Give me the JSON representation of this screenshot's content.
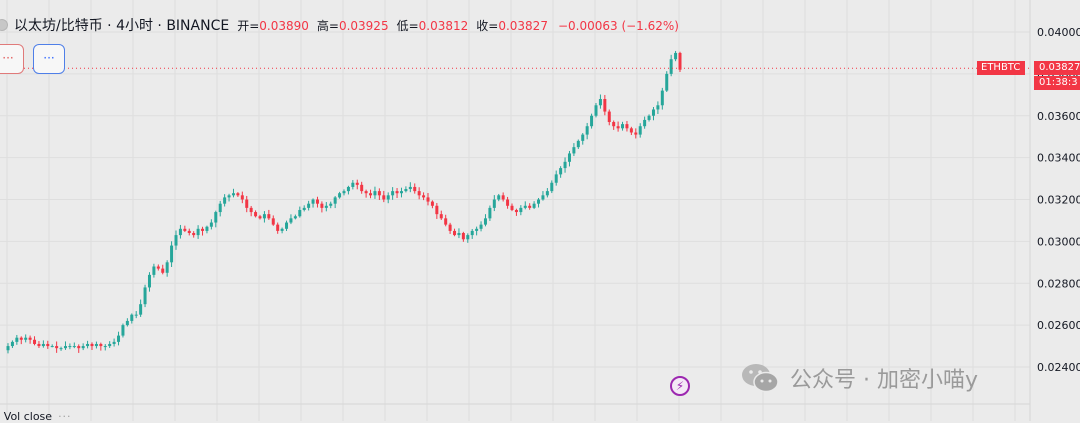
{
  "header": {
    "symbol_title": "以太坊/比特币 · 4小时 · BINANCE",
    "open_label": "开=",
    "open": "0.03890",
    "high_label": "高=",
    "high": "0.03925",
    "low_label": "低=",
    "low": "0.03812",
    "close_label": "收=",
    "close": "0.03827",
    "change": "−0.00063 (−1.62%)"
  },
  "buttons": {
    "sell_label": "···",
    "buy_label": "···"
  },
  "price_tags": {
    "symbol": "ETHBTC",
    "last_price": "0.03827",
    "countdown": "01:38:3"
  },
  "volume_legend": {
    "label": "H Vol close",
    "dots": "···"
  },
  "watermark": {
    "text": "公众号 · 加密小喵y"
  },
  "icons": {
    "flash": "lightning-icon",
    "wechat": "wechat-logo-icon"
  },
  "colors": {
    "up": "#26a69a",
    "down": "#f23645",
    "price_line": "#f23645",
    "background": "#ebebeb"
  },
  "chart_data": {
    "type": "candlestick",
    "title": "以太坊/比特币 · 4小时 · BINANCE",
    "ylim": [
      0.023,
      0.041
    ],
    "yticks": [
      "0.04000",
      "0.03800",
      "0.03600",
      "0.03400",
      "0.03200",
      "0.03000",
      "0.02800",
      "0.02600",
      "0.02400"
    ],
    "grid": true,
    "last_price": 0.03827,
    "close_series": [
      0.025,
      0.0252,
      0.0254,
      0.0253,
      0.0254,
      0.0253,
      0.0251,
      0.025,
      0.0251,
      0.025,
      0.025,
      0.0249,
      0.0249,
      0.025,
      0.025,
      0.025,
      0.0249,
      0.025,
      0.0251,
      0.025,
      0.0251,
      0.025,
      0.025,
      0.0251,
      0.0252,
      0.0255,
      0.026,
      0.0262,
      0.0265,
      0.0265,
      0.027,
      0.0278,
      0.0284,
      0.0288,
      0.0287,
      0.0285,
      0.029,
      0.0298,
      0.0303,
      0.0306,
      0.0305,
      0.0304,
      0.0303,
      0.0306,
      0.0305,
      0.0307,
      0.0309,
      0.0314,
      0.0318,
      0.0321,
      0.0322,
      0.0323,
      0.0322,
      0.032,
      0.0316,
      0.0314,
      0.0312,
      0.0311,
      0.0313,
      0.0311,
      0.0308,
      0.0305,
      0.0306,
      0.0309,
      0.0311,
      0.0312,
      0.0315,
      0.0316,
      0.0318,
      0.032,
      0.0318,
      0.0316,
      0.0317,
      0.0318,
      0.0321,
      0.0323,
      0.0324,
      0.0326,
      0.0328,
      0.0327,
      0.0324,
      0.0323,
      0.0322,
      0.0324,
      0.0322,
      0.032,
      0.0322,
      0.0324,
      0.0323,
      0.0324,
      0.0325,
      0.0326,
      0.0324,
      0.0322,
      0.0321,
      0.0319,
      0.0317,
      0.0313,
      0.0311,
      0.0308,
      0.0305,
      0.0303,
      0.0304,
      0.0301,
      0.0303,
      0.0305,
      0.0306,
      0.0308,
      0.0311,
      0.0316,
      0.032,
      0.0322,
      0.032,
      0.0317,
      0.0315,
      0.0314,
      0.0316,
      0.0317,
      0.0316,
      0.0318,
      0.032,
      0.0322,
      0.0324,
      0.0328,
      0.0332,
      0.0335,
      0.0338,
      0.0342,
      0.0345,
      0.0348,
      0.0351,
      0.0355,
      0.036,
      0.0365,
      0.0368,
      0.0362,
      0.0357,
      0.0355,
      0.0354,
      0.0356,
      0.0354,
      0.0352,
      0.0351,
      0.0355,
      0.0358,
      0.036,
      0.0363,
      0.0365,
      0.0372,
      0.038,
      0.0387,
      0.039,
      0.0382
    ]
  }
}
